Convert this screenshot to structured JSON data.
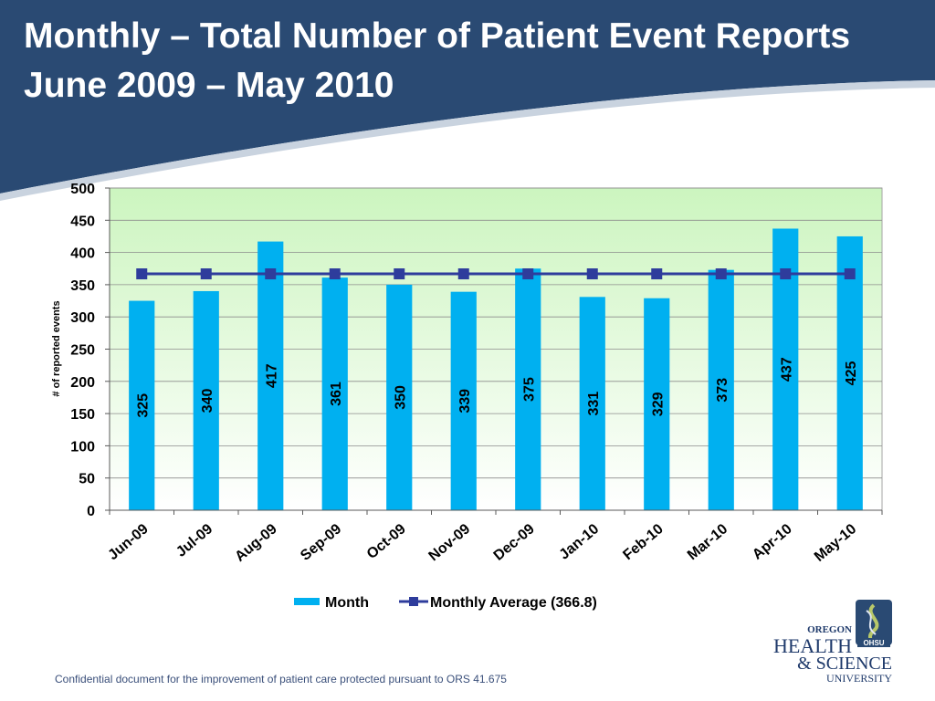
{
  "slide": {
    "title_line1": "Monthly – Total Number of Patient Event Reports",
    "title_line2": "June 2009 – May 2010",
    "footer": "Confidential document for the improvement of patient care protected pursuant to ORS 41.675"
  },
  "logo": {
    "line1": "OREGON",
    "line2": "HEALTH",
    "line3": "& SCIENCE",
    "line4": "UNIVERSITY",
    "badge": "OHSU"
  },
  "colors": {
    "banner": "#2a4a73",
    "bar": "#00b0f0",
    "average_line": "#2e3c9c",
    "plot_top": "#ccf5bf",
    "plot_bottom": "#ffffff"
  },
  "chart_data": {
    "type": "bar",
    "ylabel": "# of reported events",
    "xlabel": "",
    "ylim": [
      0,
      500
    ],
    "yticks": [
      0,
      50,
      100,
      150,
      200,
      250,
      300,
      350,
      400,
      450,
      500
    ],
    "grid": true,
    "legend_position": "bottom",
    "categories": [
      "Jun-09",
      "Jul-09",
      "Aug-09",
      "Sep-09",
      "Oct-09",
      "Nov-09",
      "Dec-09",
      "Jan-10",
      "Feb-10",
      "Mar-10",
      "Apr-10",
      "May-10"
    ],
    "series": [
      {
        "name": "Month",
        "type": "bar",
        "values": [
          325,
          340,
          417,
          361,
          350,
          339,
          375,
          331,
          329,
          373,
          437,
          425
        ]
      },
      {
        "name": "Monthly Average (366.8)",
        "type": "line",
        "values": [
          366.8,
          366.8,
          366.8,
          366.8,
          366.8,
          366.8,
          366.8,
          366.8,
          366.8,
          366.8,
          366.8,
          366.8
        ]
      }
    ]
  }
}
